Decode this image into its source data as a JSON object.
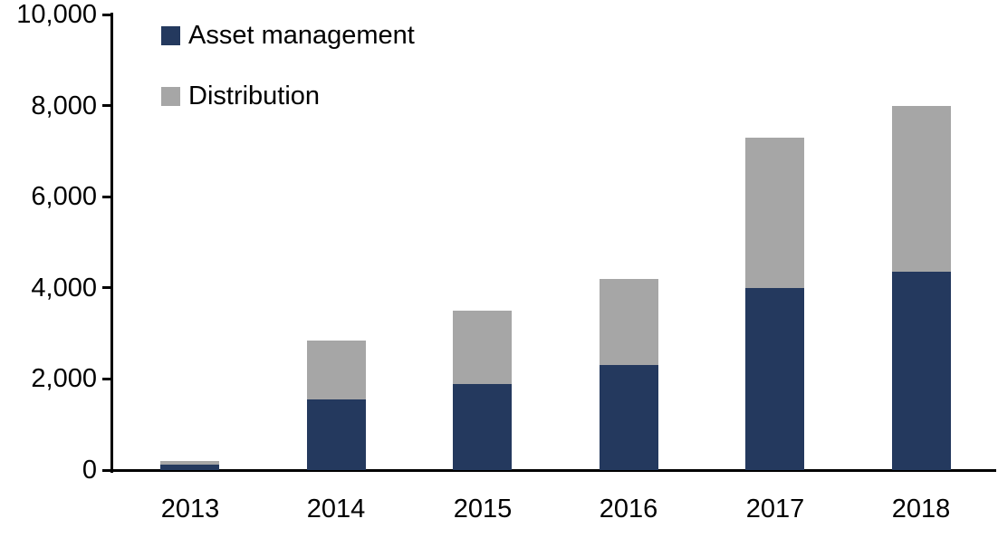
{
  "chart_data": {
    "type": "bar",
    "stacked": true,
    "title": "",
    "xlabel": "",
    "ylabel": "",
    "categories": [
      "2013",
      "2014",
      "2015",
      "2016",
      "2017",
      "2018"
    ],
    "series": [
      {
        "name": "Asset management",
        "color": "#24395E",
        "values": [
          120,
          1550,
          1900,
          2300,
          4000,
          4350
        ]
      },
      {
        "name": "Distribution",
        "color": "#A6A6A6",
        "values": [
          80,
          1300,
          1600,
          1900,
          3300,
          3650
        ]
      }
    ],
    "ylim": [
      0,
      10000
    ],
    "yticks": [
      0,
      2000,
      4000,
      6000,
      8000,
      10000
    ],
    "ytick_labels": [
      "0",
      "2,000",
      "4,000",
      "6,000",
      "8,000",
      "10,000"
    ],
    "legend_position": "top-left",
    "grid": false,
    "axis_color": "#000000",
    "background_color": "#FFFFFF"
  }
}
